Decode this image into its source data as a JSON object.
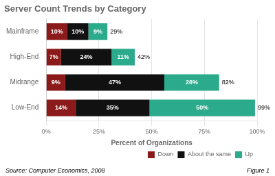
{
  "chart_data": {
    "type": "bar",
    "orientation": "horizontal",
    "stacked": true,
    "title": "Server Count Trends by Category",
    "categories": [
      "Mainframe",
      "High-End",
      "Midrange",
      "Low-End"
    ],
    "series": [
      {
        "name": "Down",
        "color": "#8B1A1A",
        "values": [
          10,
          7,
          9,
          14
        ],
        "value_labels": [
          "10%",
          "7%",
          "9%",
          "14%"
        ]
      },
      {
        "name": "About the same",
        "color": "#111111",
        "values": [
          10,
          24,
          47,
          35
        ],
        "value_labels": [
          "10%",
          "24%",
          "47%",
          "35%"
        ]
      },
      {
        "name": "Up",
        "color": "#2BAA8C",
        "values": [
          9,
          11,
          26,
          50
        ],
        "value_labels": [
          "9%",
          "11%",
          "26%",
          "50%"
        ]
      }
    ],
    "data_labels": true,
    "totals": [
      29,
      42,
      82,
      99
    ],
    "total_labels": [
      "29%",
      "42%",
      "82%",
      "99%"
    ],
    "xlabel": "Percent of Organizations",
    "xlim": [
      0,
      100
    ],
    "xticks": [
      {
        "value": 0,
        "label": "0%"
      },
      {
        "value": 25,
        "label": "25%"
      },
      {
        "value": 50,
        "label": "50%"
      },
      {
        "value": 75,
        "label": "75%"
      },
      {
        "value": 100,
        "label": "100%"
      }
    ],
    "grid": true,
    "legend": "lower right",
    "source": "Source: Computer Economics, 2008",
    "figure_label": "Figure 1"
  }
}
